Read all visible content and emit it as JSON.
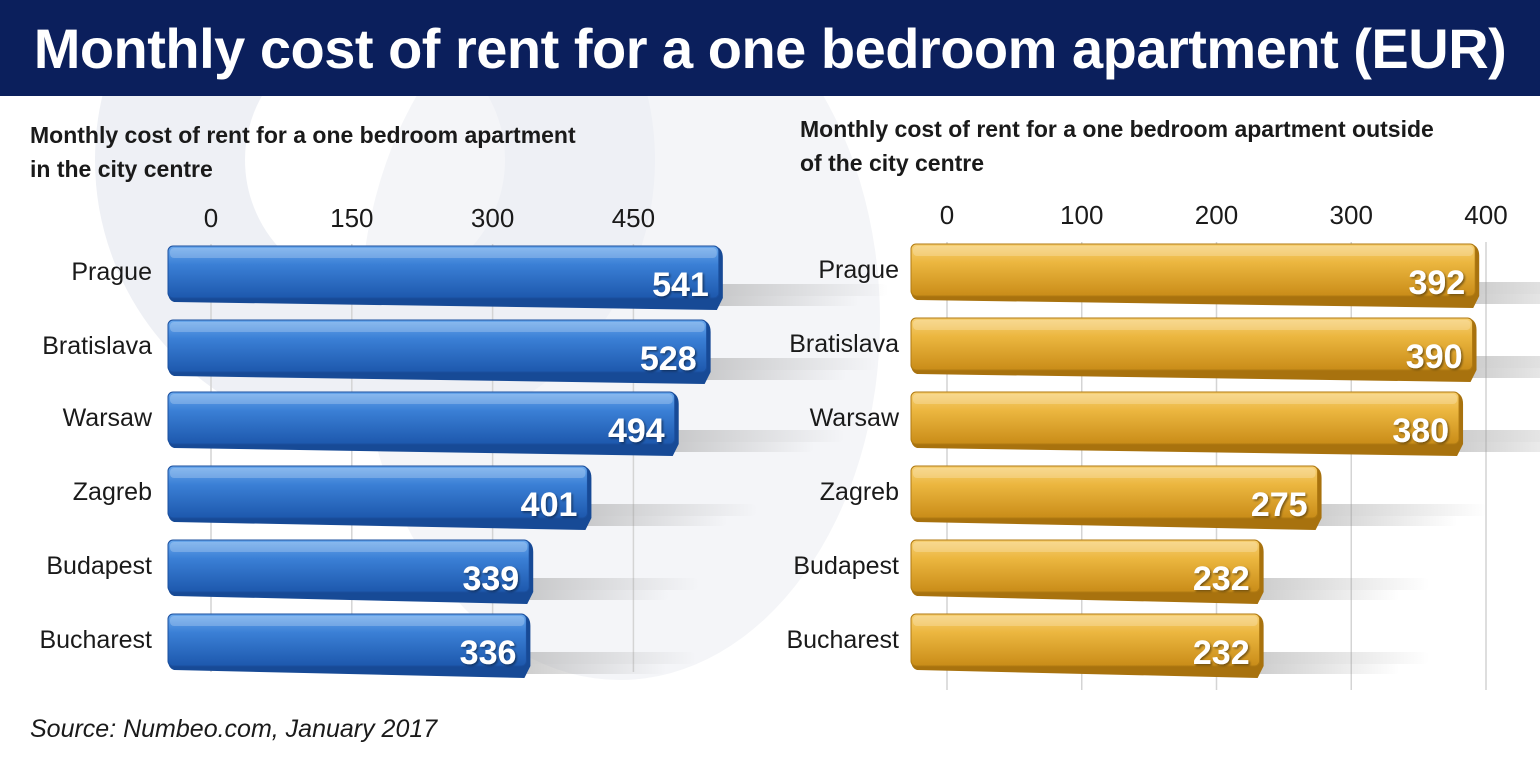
{
  "header": {
    "title": "Monthly cost of rent for a one bedroom apartment (EUR)"
  },
  "source": "Source: Numbeo.com, January 2017",
  "colors": {
    "header_bg": "#0b1f5c",
    "left_bar": "#2f72c8",
    "right_bar": "#eab23a"
  },
  "chart_data": [
    {
      "type": "bar",
      "orientation": "horizontal",
      "title": "Monthly cost of rent for a one bedroom apartment in the city centre",
      "title_lines": [
        "Monthly cost of rent for a one bedroom apartment",
        "in the city centre"
      ],
      "categories": [
        "Prague",
        "Bratislava",
        "Warsaw",
        "Zagreb",
        "Budapest",
        "Bucharest"
      ],
      "values": [
        541,
        528,
        494,
        401,
        339,
        336
      ],
      "ticks": [
        0,
        150,
        300,
        450
      ],
      "xlim": [
        0,
        600
      ],
      "grid": true,
      "color": "#2f72c8"
    },
    {
      "type": "bar",
      "orientation": "horizontal",
      "title": "Monthly cost of rent for a one bedroom apartment outside of the city centre",
      "title_lines": [
        "Monthly cost of rent for a one bedroom apartment outside",
        "of the city centre"
      ],
      "categories": [
        "Prague",
        "Bratislava",
        "Warsaw",
        "Zagreb",
        "Budapest",
        "Bucharest"
      ],
      "values": [
        392,
        390,
        380,
        275,
        232,
        232
      ],
      "ticks": [
        0,
        100,
        200,
        300,
        400
      ],
      "xlim": [
        0,
        400
      ],
      "grid": true,
      "color": "#eab23a"
    }
  ]
}
